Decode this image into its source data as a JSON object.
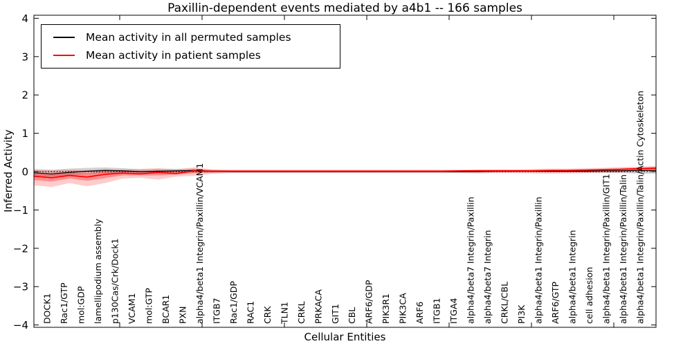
{
  "chart_data": {
    "type": "line",
    "title": "Paxillin-dependent events mediated by a4b1 -- 166 samples",
    "xlabel": "Cellular Entities",
    "ylabel": "Inferred Activity",
    "ylim": [
      -4,
      4
    ],
    "yticks": [
      -4,
      -3,
      -2,
      -1,
      0,
      1,
      2,
      3,
      4
    ],
    "ytick_labels": [
      "−4",
      "−3",
      "−2",
      "−1",
      "0",
      "1",
      "2",
      "3",
      "4"
    ],
    "grid": false,
    "reference_line": {
      "y": 0,
      "style": "dotted",
      "color": "#000000"
    },
    "legend_position": "upper left",
    "categories": [
      "DOCK1",
      "Rac1/GTP",
      "mol:GDP",
      "lamellipodium assembly",
      "p130Cas/Crk/Dock1",
      "VCAM1",
      "mol:GTP",
      "BCAR1",
      "PXN",
      "alpha4/beta1 Integrin/Paxillin/VCAM1",
      "ITGB7",
      "Rac1/GDP",
      "RAC1",
      "CRK",
      "TLN1",
      "CRKL",
      "PRKACA",
      "GIT1",
      "CBL",
      "ARF6/GDP",
      "PIK3R1",
      "PIK3CA",
      "ARF6",
      "ITGB1",
      "ITGA4",
      "alpha4/beta7 Integrin/Paxillin",
      "alpha4/beta7 Integrin",
      "CRKL/CBL",
      "PI3K",
      "alpha4/beta1 Integrin/Paxillin",
      "ARF6/GTP",
      "alpha4/beta1 Integrin",
      "cell adhesion",
      "alpha4/beta1 Integrin/Paxillin/GIT1",
      "alpha4/beta1 Integrin/Paxillin/Talin",
      "alpha4/beta1 Integrin/Paxillin/Talin/Actin Cytoskeleton"
    ],
    "series": [
      {
        "name": "Mean activity in all permuted samples",
        "color": "#000000",
        "values": [
          -0.03,
          -0.06,
          -0.02,
          0.01,
          0.03,
          0.02,
          0.0,
          0.01,
          0.02,
          0.03,
          0.01,
          0.0,
          0.0,
          0.0,
          0.0,
          0.0,
          0.0,
          0.0,
          0.0,
          0.0,
          0.0,
          0.0,
          0.0,
          0.0,
          0.0,
          0.0,
          0.01,
          0.01,
          0.01,
          0.01,
          0.01,
          0.01,
          0.02,
          0.02,
          0.03,
          0.03
        ]
      },
      {
        "name": "Mean activity in patient samples",
        "color": "#ff0000",
        "values": [
          -0.12,
          -0.16,
          -0.1,
          -0.14,
          -0.07,
          -0.04,
          -0.06,
          -0.02,
          -0.05,
          0.02,
          0.01,
          0.01,
          0.01,
          0.01,
          0.01,
          0.01,
          0.01,
          0.01,
          0.01,
          0.01,
          0.01,
          0.01,
          0.01,
          0.01,
          0.02,
          0.02,
          0.02,
          0.02,
          0.02,
          0.03,
          0.03,
          0.04,
          0.05,
          0.06,
          0.08,
          0.09
        ]
      }
    ],
    "bands": [
      {
        "name": "permuted-samples-range",
        "color": "#aaaaaa",
        "opacity": 0.5,
        "low": [
          -0.1,
          -0.13,
          -0.09,
          -0.07,
          -0.04,
          -0.05,
          -0.06,
          -0.04,
          -0.03,
          -0.02,
          -0.03,
          -0.02,
          -0.02,
          -0.02,
          -0.02,
          -0.02,
          -0.02,
          -0.02,
          -0.02,
          -0.02,
          -0.02,
          -0.02,
          -0.02,
          -0.02,
          -0.02,
          -0.02,
          -0.02,
          -0.02,
          -0.02,
          -0.02,
          -0.02,
          -0.03,
          -0.03,
          -0.04,
          -0.05,
          -0.06
        ],
        "high": [
          0.07,
          0.05,
          0.08,
          0.1,
          0.11,
          0.09,
          0.06,
          0.07,
          0.07,
          0.08,
          0.05,
          0.03,
          0.02,
          0.02,
          0.02,
          0.02,
          0.02,
          0.02,
          0.02,
          0.02,
          0.02,
          0.02,
          0.02,
          0.02,
          0.02,
          0.03,
          0.03,
          0.03,
          0.03,
          0.04,
          0.04,
          0.05,
          0.06,
          0.07,
          0.08,
          0.09
        ]
      },
      {
        "name": "patient-samples-outer-range",
        "color": "#ff0000",
        "opacity": 0.2,
        "low": [
          -0.36,
          -0.4,
          -0.3,
          -0.38,
          -0.3,
          -0.18,
          -0.16,
          -0.21,
          -0.13,
          -0.11,
          -0.06,
          -0.04,
          -0.04,
          -0.04,
          -0.04,
          -0.04,
          -0.04,
          -0.04,
          -0.04,
          -0.04,
          -0.04,
          -0.04,
          -0.04,
          -0.04,
          -0.04,
          -0.05,
          -0.04,
          -0.04,
          -0.05,
          -0.06,
          -0.05,
          -0.04,
          -0.03,
          -0.02,
          -0.01,
          0.01
        ],
        "high": [
          0.04,
          0.03,
          0.05,
          0.04,
          0.07,
          0.06,
          0.07,
          0.09,
          0.06,
          0.11,
          0.06,
          0.05,
          0.05,
          0.05,
          0.05,
          0.05,
          0.05,
          0.05,
          0.05,
          0.05,
          0.05,
          0.05,
          0.05,
          0.05,
          0.05,
          0.06,
          0.06,
          0.06,
          0.07,
          0.08,
          0.08,
          0.09,
          0.1,
          0.12,
          0.13,
          0.15
        ]
      },
      {
        "name": "patient-samples-inner-range",
        "color": "#ff0000",
        "opacity": 0.3,
        "low": [
          -0.22,
          -0.26,
          -0.18,
          -0.24,
          -0.17,
          -0.1,
          -0.1,
          -0.1,
          -0.08,
          -0.04,
          -0.02,
          -0.01,
          -0.01,
          -0.01,
          -0.01,
          -0.01,
          -0.01,
          -0.01,
          -0.01,
          -0.01,
          -0.01,
          -0.01,
          -0.01,
          -0.01,
          -0.01,
          -0.01,
          -0.01,
          -0.01,
          -0.01,
          -0.01,
          -0.01,
          0.0,
          0.01,
          0.02,
          0.04,
          0.05
        ],
        "high": [
          -0.04,
          -0.07,
          -0.02,
          -0.05,
          0.01,
          0.02,
          0.01,
          0.03,
          0.0,
          0.06,
          0.03,
          0.03,
          0.03,
          0.03,
          0.03,
          0.03,
          0.03,
          0.03,
          0.03,
          0.03,
          0.03,
          0.03,
          0.03,
          0.03,
          0.03,
          0.04,
          0.04,
          0.04,
          0.04,
          0.05,
          0.05,
          0.06,
          0.07,
          0.09,
          0.1,
          0.12
        ]
      }
    ]
  }
}
